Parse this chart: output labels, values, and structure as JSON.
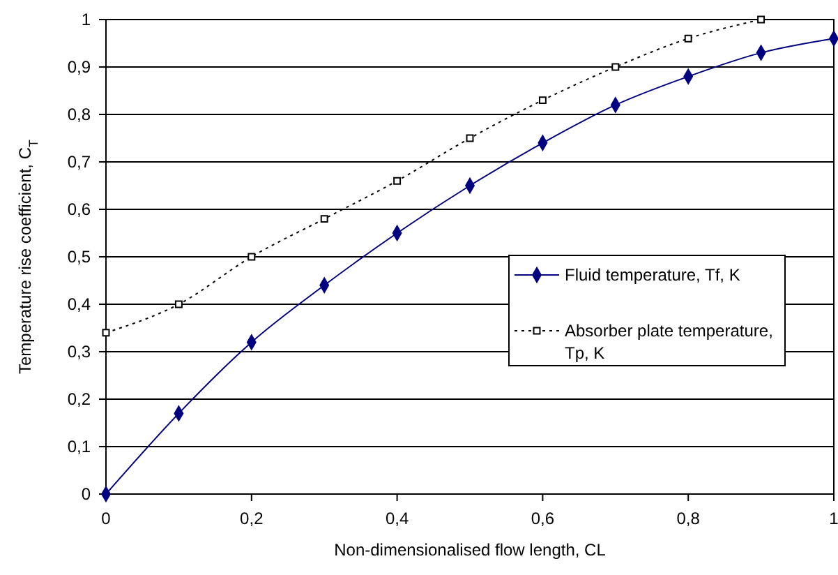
{
  "chart_data": {
    "type": "line",
    "xlabel": "Non-dimensionalised flow length, CL",
    "ylabel": "Temperature rise coefficient, C$_{T}$",
    "x": [
      0,
      0.1,
      0.2,
      0.3,
      0.4,
      0.5,
      0.6,
      0.7,
      0.8,
      0.9,
      1
    ],
    "series": [
      {
        "name": "Fluid temperature, Tf, K",
        "color": "#000080",
        "marker": "diamond",
        "line_style": "solid",
        "values": [
          0,
          0.17,
          0.32,
          0.44,
          0.55,
          0.65,
          0.74,
          0.82,
          0.88,
          0.93,
          0.96
        ]
      },
      {
        "name": "Absorber plate temperature, Tp, K",
        "color": "#000000",
        "marker": "square",
        "line_style": "dotted",
        "values": [
          0.34,
          0.4,
          0.5,
          0.58,
          0.66,
          0.75,
          0.83,
          0.9,
          0.96,
          1.0,
          null
        ]
      }
    ],
    "xlim": [
      0,
      1
    ],
    "xticks": [
      0,
      {
        "value": 0.2,
        "label": "0,2"
      },
      {
        "value": 0.4,
        "label": "0,4"
      },
      {
        "value": 0.6,
        "label": "0,6"
      },
      {
        "value": 0.8,
        "label": "0,8"
      },
      1
    ],
    "ylim": [
      0,
      1
    ],
    "yticks": [
      0,
      {
        "value": 0.1,
        "label": "0,1"
      },
      {
        "value": 0.2,
        "label": "0,2"
      },
      {
        "value": 0.3,
        "label": "0,3"
      },
      {
        "value": 0.4,
        "label": "0,4"
      },
      {
        "value": 0.5,
        "label": "0,5"
      },
      {
        "value": 0.6,
        "label": "0,6"
      },
      {
        "value": 0.7,
        "label": "0,7"
      },
      {
        "value": 0.8,
        "label": "0,8"
      },
      {
        "value": 0.9,
        "label": "0,9"
      },
      1
    ],
    "grid": "y",
    "legend": "right"
  }
}
